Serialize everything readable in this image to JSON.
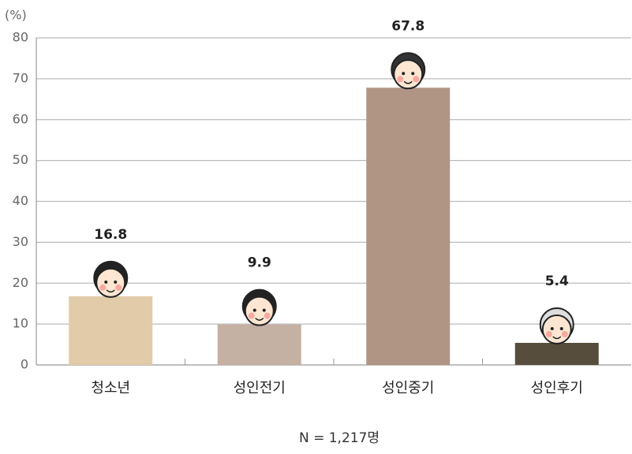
{
  "chart_data": {
    "type": "bar",
    "y_unit_label": "(%)",
    "categories": [
      "청소년",
      "성인전기",
      "성인중기",
      "성인후기"
    ],
    "values": [
      16.8,
      9.9,
      67.8,
      5.4
    ],
    "colors": [
      "#e2cba9",
      "#c5b0a4",
      "#b09585",
      "#574d3c"
    ],
    "ylim": [
      0,
      80
    ],
    "yticks": [
      0,
      10,
      20,
      30,
      40,
      50,
      60,
      70,
      80
    ],
    "grid": true,
    "note": "N = 1,217명"
  }
}
